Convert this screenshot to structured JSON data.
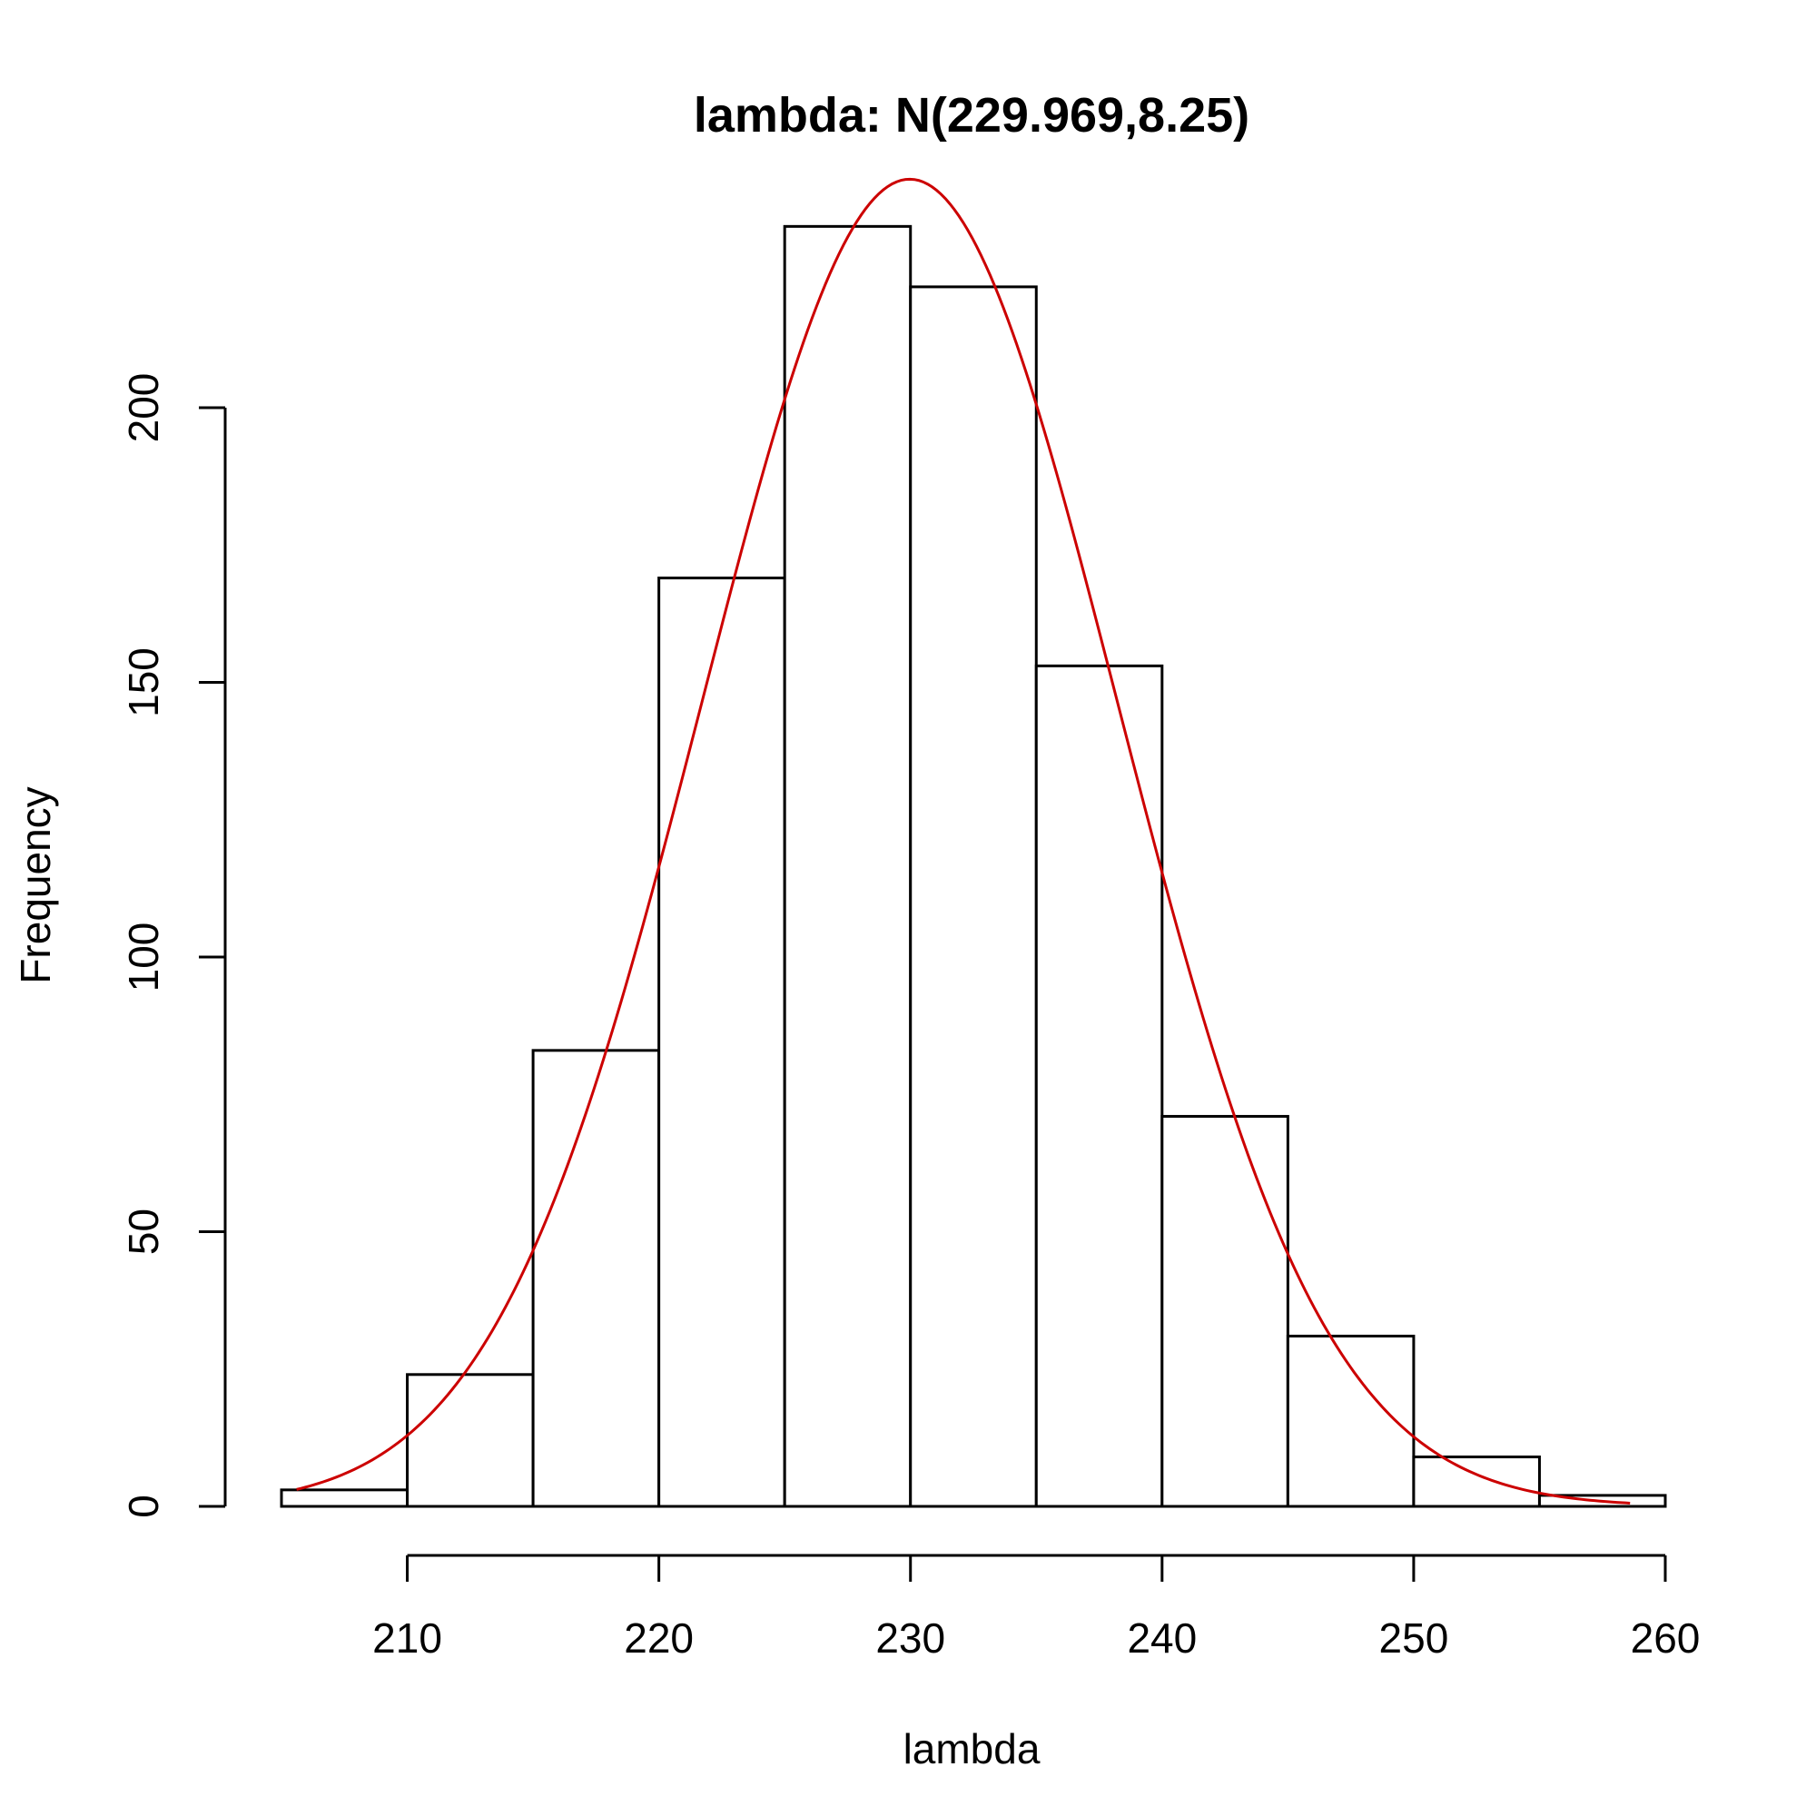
{
  "chart_data": {
    "type": "bar",
    "subtype": "histogram",
    "title": "lambda: N(229.969,8.25)",
    "xlabel": "lambda",
    "ylabel": "Frequency",
    "bin_edges": [
      205,
      210,
      215,
      220,
      225,
      230,
      235,
      240,
      245,
      250,
      255,
      260
    ],
    "values": [
      3,
      24,
      83,
      169,
      233,
      222,
      153,
      71,
      31,
      9,
      2
    ],
    "xlim": [
      205,
      260
    ],
    "ylim": [
      0,
      240
    ],
    "x_ticks": [
      "210",
      "220",
      "230",
      "240",
      "250",
      "260"
    ],
    "y_ticks": [
      "0",
      "50",
      "100",
      "150",
      "200"
    ],
    "grid": false,
    "overlay": {
      "type": "line",
      "distribution": "normal",
      "mean": 229.969,
      "sd": 8.25,
      "x_range": [
        205.6,
        258.6
      ],
      "peak": 241.6,
      "color": "#cc0000"
    },
    "bar_fill": "#ffffff",
    "bar_stroke": "#000000"
  }
}
